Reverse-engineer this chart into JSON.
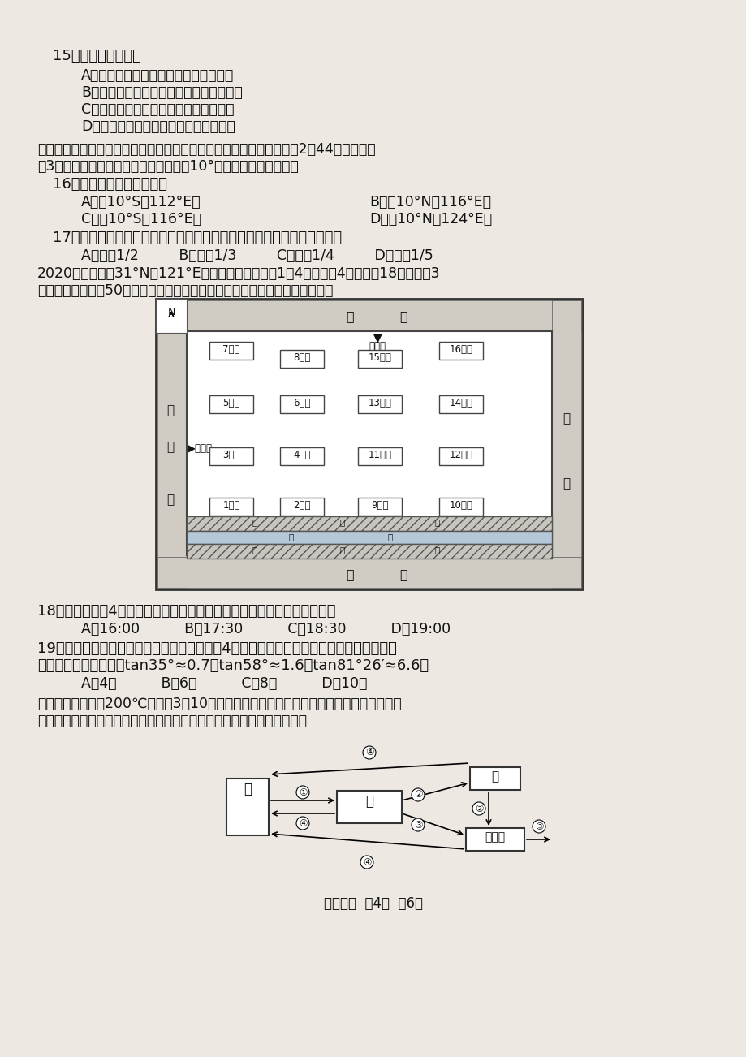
{
  "bg_color": "#ede9e2",
  "q15_title": "15．中老铁路的修建",
  "q15_opts": [
    "A．采用客货混运，可满足各类运输需求",
    "B．可能遭遇洪水、滑坡、寒潮等自然灰害",
    "C．有利于促进万象港口服务范围的扩大",
    "D．促进陆上丝绸之路沿线地区互联互通"
  ],
  "para1_1": "我国有一船科学考察船进行国土资源调查时，停泊在某海域。当地凌晨2时44分（北京时",
  "para1_2": "间3时）从船上测得北极星的地平高度为10°。据此完成下面小题。",
  "q16_title": "16．该船所在的地理位置是",
  "q16_A": "A．（10°S，112°E）",
  "q16_B": "B．（10°N，116°E）",
  "q16_C": "C．（10°S，116°E）",
  "q16_D": "D．（10°N，124°E）",
  "q17_title": "17．此时属于东半球且与该船所在地点属于同一日期的范围，约占全球的",
  "q17_opts": "A．大于1/2         B．大于1/3         C．小于1/4         D．小于1/5",
  "para2_1": "2020年某楼盘（31°N，121°E）开盘销售已封顶的1～4号楼。这4幢楼均为18层，层高3",
  "para2_2": "米，南北楼间距为50米。下图为「该楼盘平面示意图」。据此完成下面小题。",
  "q18_title": "18．某日小明在4号楼南阳台，恰好看到日落，当时的北京时间最有可能是",
  "q18_opts": "A．16:00          B．17:30          C．18:30          D．19:00",
  "q19_title1": "19．一般随楼层升高房价相应提高。小明想在4号楼购房，希望全年正午都有太阳照射且单",
  "q19_title2": "价较低。建议他选择（tan35°≈0.7，tan58°≈1.6，tan81°26′≈6.6）",
  "q19_opts": "A．4层          B．6层          C．8层          D．10层",
  "para3_1": "干热岂是温度大于200℃、埋深3～10千米的高温岂体，是一种新兴的地热能，这种岂体的",
  "para3_2": "绝大部分为侵入屢。下图为屢石圈物质循环示意图。据此完成下面小题。",
  "footer": "高二地理  笥4页  八6页"
}
